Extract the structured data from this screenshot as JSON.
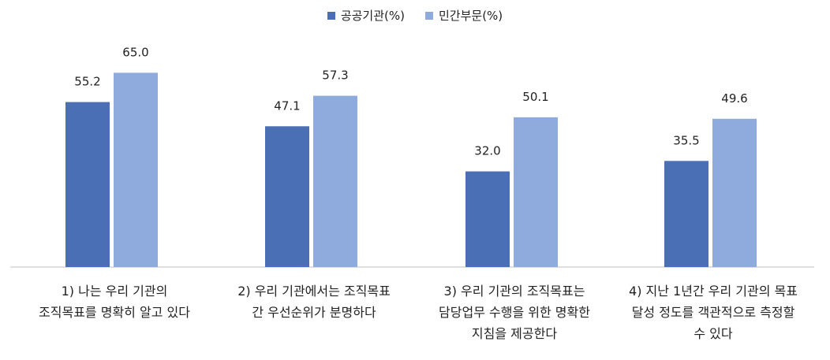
{
  "chart_data": {
    "type": "bar",
    "categories": [
      "1) 나는 우리 기관의\n조직목표를 명확히 알고 있다",
      "2) 우리 기관에서는 조직목표\n간 우선순위가 분명하다",
      "3) 우리 기관의 조직목표는\n담당업무 수행을 위한 명확한\n지침을 제공한다",
      "4) 지난 1년간 우리 기관의 목표\n달성 정도를 객관적으로 측정할\n수 있다"
    ],
    "series": [
      {
        "name": "공공기관(%)",
        "values": [
          55.2,
          47.1,
          32.0,
          35.5
        ],
        "value_labels": [
          "55.2",
          "47.1",
          "32.0",
          "35.5"
        ],
        "color": "#4a6fb5"
      },
      {
        "name": "민간부문(%)",
        "values": [
          65.0,
          57.3,
          50.1,
          49.6
        ],
        "value_labels": [
          "65.0",
          "57.3",
          "50.1",
          "49.6"
        ],
        "color": "#8faadc"
      }
    ],
    "ylim": [
      0,
      70
    ],
    "legend": "top-center",
    "grid": false
  }
}
